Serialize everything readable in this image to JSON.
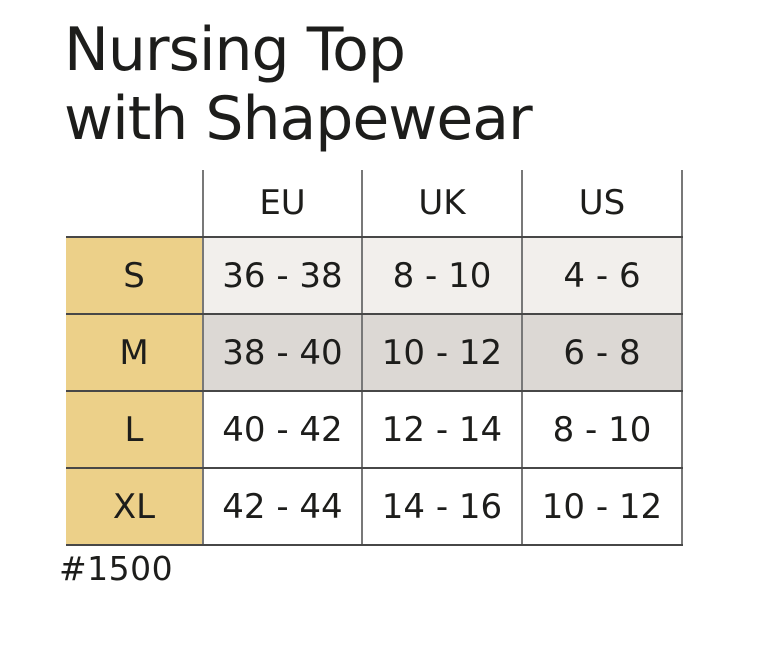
{
  "title": {
    "line1": "Nursing Top",
    "line2": "with Shapewear"
  },
  "size_table": {
    "column_headers": [
      "EU",
      "UK",
      "US"
    ],
    "rows": [
      {
        "label": "S",
        "values": [
          "36 - 38",
          "8 - 10",
          "4 - 6"
        ],
        "bg": "#f2efec"
      },
      {
        "label": "M",
        "values": [
          "38 - 40",
          "10 - 12",
          "6 - 8"
        ],
        "bg": "#dcd8d4"
      },
      {
        "label": "L",
        "values": [
          "40 - 42",
          "12 - 14",
          "8 - 10"
        ],
        "bg": "#ffffff"
      },
      {
        "label": "XL",
        "values": [
          "42 - 44",
          "14 - 16",
          "10 - 12"
        ],
        "bg": "#ffffff"
      }
    ]
  },
  "footer": {
    "model_number": "#1500"
  },
  "colors": {
    "page_bg": "#ffffff",
    "label_cell_bg": "#ecd089",
    "row_s_bg": "#f2efec",
    "row_m_bg": "#dcd8d4",
    "grid_horizontal": "#474747",
    "grid_vertical": "#787878",
    "text": "#1d1d1b"
  }
}
